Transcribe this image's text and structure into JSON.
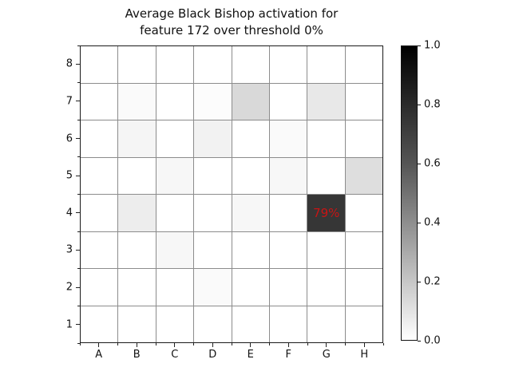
{
  "title": {
    "line1": "Average Black Bishop activation for",
    "line2": "feature 172 over threshold 0%"
  },
  "chart_data": {
    "type": "heatmap",
    "title": "Average Black Bishop activation for feature 172 over threshold 0%",
    "x_categories": [
      "A",
      "B",
      "C",
      "D",
      "E",
      "F",
      "G",
      "H"
    ],
    "y_categories": [
      "8",
      "7",
      "6",
      "5",
      "4",
      "3",
      "2",
      "1"
    ],
    "values_rows_top_to_bottom": [
      [
        0,
        0,
        0,
        0,
        0,
        0,
        0,
        0
      ],
      [
        0,
        0.02,
        0,
        0.01,
        0.15,
        0,
        0.09,
        0
      ],
      [
        0,
        0.04,
        0,
        0.05,
        0,
        0.02,
        0,
        0
      ],
      [
        0,
        0,
        0.03,
        0,
        0,
        0.03,
        0,
        0.13
      ],
      [
        0,
        0.07,
        0,
        0,
        0.03,
        0,
        0.79,
        0
      ],
      [
        0,
        0,
        0.03,
        0,
        0,
        0,
        0,
        0
      ],
      [
        0,
        0,
        0,
        0.02,
        0,
        0,
        0,
        0
      ],
      [
        0,
        0,
        0,
        0,
        0,
        0,
        0,
        0
      ]
    ],
    "value_range": [
      0,
      1
    ],
    "colormap": "Greys (white=0, black=1)",
    "grid": "on",
    "annotations": [
      {
        "column": "G",
        "row": "4",
        "text": "79%",
        "value": 0.79,
        "color": "#c81414"
      }
    ],
    "colorbar": {
      "min": 0.0,
      "max": 1.0,
      "tick_labels": [
        "1.0",
        "0.8",
        "0.6",
        "0.4",
        "0.2",
        "0.0"
      ],
      "position": "right"
    }
  },
  "colors": {
    "annotation_red": "#c81414",
    "grid_line": "#8c8c8c",
    "spine": "#1a1a1a",
    "background": "#ffffff"
  }
}
